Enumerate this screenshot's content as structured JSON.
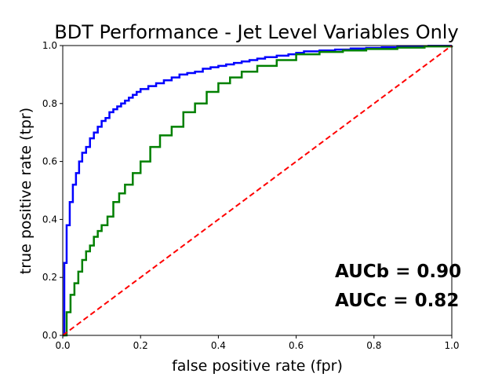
{
  "chart_data": {
    "type": "line",
    "title": "BDT Performance - Jet Level Variables Only",
    "xlabel": "false positive rate (fpr)",
    "ylabel": "true positive rate (tpr)",
    "xlim": [
      0,
      1
    ],
    "ylim": [
      0,
      1
    ],
    "xticks": [
      "0.0",
      "0.2",
      "0.4",
      "0.6",
      "0.8",
      "1.0"
    ],
    "yticks": [
      "0.0",
      "0.2",
      "0.4",
      "0.6",
      "0.8",
      "1.0"
    ],
    "grid": false,
    "legend": null,
    "annotations": [
      "AUCb = 0.90",
      "AUCc = 0.82"
    ],
    "series": [
      {
        "color": "#0000ff",
        "style": "step",
        "x": [
          0.0,
          0.004,
          0.01,
          0.018,
          0.026,
          0.034,
          0.042,
          0.05,
          0.06,
          0.07,
          0.08,
          0.09,
          0.1,
          0.11,
          0.12,
          0.13,
          0.14,
          0.15,
          0.16,
          0.17,
          0.18,
          0.19,
          0.2,
          0.22,
          0.24,
          0.26,
          0.28,
          0.3,
          0.32,
          0.34,
          0.36,
          0.38,
          0.4,
          0.42,
          0.44,
          0.46,
          0.48,
          0.5,
          0.52,
          0.55,
          0.58,
          0.6,
          0.62,
          0.66,
          0.7,
          0.74,
          0.78,
          0.82,
          0.86,
          0.9,
          0.94,
          1.0
        ],
        "y": [
          0.0,
          0.25,
          0.38,
          0.46,
          0.52,
          0.56,
          0.6,
          0.63,
          0.65,
          0.68,
          0.7,
          0.72,
          0.74,
          0.75,
          0.77,
          0.78,
          0.79,
          0.8,
          0.81,
          0.82,
          0.83,
          0.84,
          0.85,
          0.86,
          0.87,
          0.88,
          0.89,
          0.9,
          0.905,
          0.91,
          0.92,
          0.925,
          0.93,
          0.935,
          0.94,
          0.945,
          0.95,
          0.955,
          0.96,
          0.965,
          0.97,
          0.975,
          0.98,
          0.983,
          0.986,
          0.99,
          0.992,
          0.994,
          0.996,
          0.998,
          0.999,
          1.0
        ]
      },
      {
        "color": "#008000",
        "style": "step",
        "x": [
          0.0,
          0.01,
          0.02,
          0.03,
          0.04,
          0.05,
          0.06,
          0.07,
          0.08,
          0.09,
          0.1,
          0.115,
          0.13,
          0.145,
          0.16,
          0.18,
          0.2,
          0.225,
          0.25,
          0.28,
          0.31,
          0.34,
          0.37,
          0.4,
          0.43,
          0.46,
          0.5,
          0.55,
          0.6,
          0.66,
          0.72,
          0.78,
          0.86,
          0.93,
          1.0
        ],
        "y": [
          0.0,
          0.08,
          0.14,
          0.18,
          0.22,
          0.26,
          0.29,
          0.31,
          0.34,
          0.36,
          0.38,
          0.41,
          0.46,
          0.49,
          0.52,
          0.56,
          0.6,
          0.65,
          0.69,
          0.72,
          0.77,
          0.8,
          0.84,
          0.87,
          0.89,
          0.91,
          0.93,
          0.95,
          0.97,
          0.978,
          0.983,
          0.988,
          0.993,
          0.997,
          1.0
        ]
      },
      {
        "color": "#ff0000",
        "style": "dashed",
        "x": [
          0,
          1
        ],
        "y": [
          0,
          1
        ]
      }
    ]
  }
}
